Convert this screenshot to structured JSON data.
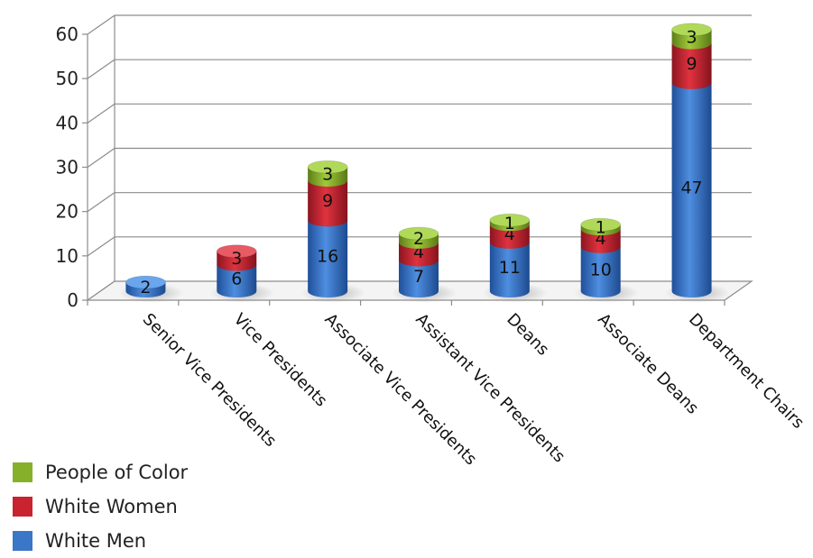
{
  "chart_data": {
    "type": "bar",
    "stacked": true,
    "style": "3d-cylinder",
    "title": "",
    "xlabel": "",
    "ylabel": "",
    "ylim": [
      0,
      60
    ],
    "yticks": [
      0,
      10,
      20,
      30,
      40,
      50,
      60
    ],
    "grid": true,
    "legend_position": "bottom-left",
    "categories": [
      "Senior Vice Presidents",
      "Vice Presidents",
      "Associate Vice Presidents",
      "Assistant Vice Presidents",
      "Deans",
      "Associate Deans",
      "Department Chairs"
    ],
    "series": [
      {
        "name": "White Men",
        "color": "#3a77c6",
        "values": [
          2,
          6,
          16,
          7,
          11,
          10,
          47
        ]
      },
      {
        "name": "White Women",
        "color": "#c8232f",
        "values": [
          0,
          3,
          9,
          4,
          4,
          4,
          9
        ]
      },
      {
        "name": "People of Color",
        "color": "#86b02a",
        "values": [
          0,
          0,
          3,
          2,
          1,
          1,
          3
        ]
      }
    ]
  },
  "legend": {
    "items": [
      {
        "label": "People of Color",
        "color": "#86b02a"
      },
      {
        "label": "White Women",
        "color": "#c8232f"
      },
      {
        "label": "White Men",
        "color": "#3a77c6"
      }
    ]
  }
}
